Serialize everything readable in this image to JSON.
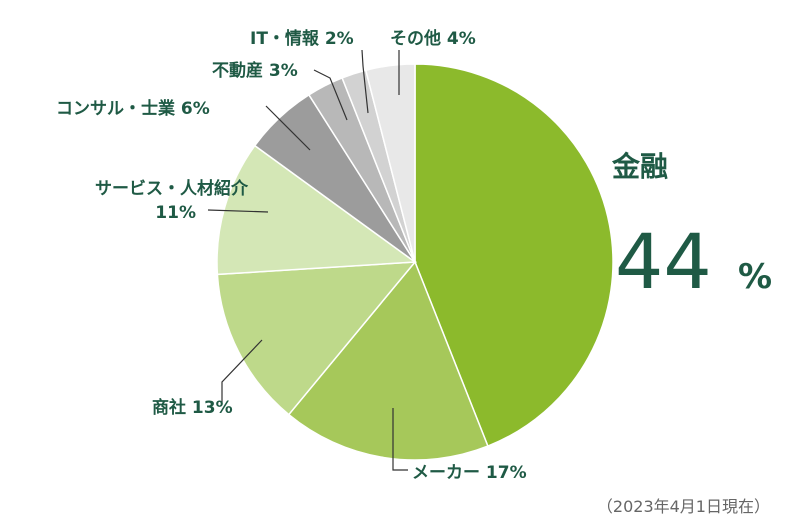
{
  "chart_data": {
    "type": "pie",
    "start_angle_deg": 0,
    "direction": "clockwise",
    "slices": [
      {
        "label": "金融",
        "value": 44,
        "value_text": "44",
        "unit": "%",
        "color": "#8cba2c"
      },
      {
        "label": "メーカー",
        "value": 17,
        "value_text": "17%",
        "color": "#a6c85a"
      },
      {
        "label": "商社",
        "value": 13,
        "value_text": "13%",
        "color": "#bed98a"
      },
      {
        "label": "サービス・人材紹介",
        "value": 11,
        "value_text": "11%",
        "color": "#d4e7b6"
      },
      {
        "label": "コンサル・士業",
        "value": 6,
        "value_text": "6%",
        "color": "#9c9c9c"
      },
      {
        "label": "不動産",
        "value": 3,
        "value_text": "3%",
        "color": "#b8b8b8"
      },
      {
        "label": "IT・情報",
        "value": 2,
        "value_text": "2%",
        "color": "#d2d2d2"
      },
      {
        "label": "その他",
        "value": 4,
        "value_text": "4%",
        "color": "#e8e8e8"
      }
    ],
    "label_color": "#1f5a45",
    "leader_color": "#333333",
    "note": "（2023年4月1日現在）"
  }
}
